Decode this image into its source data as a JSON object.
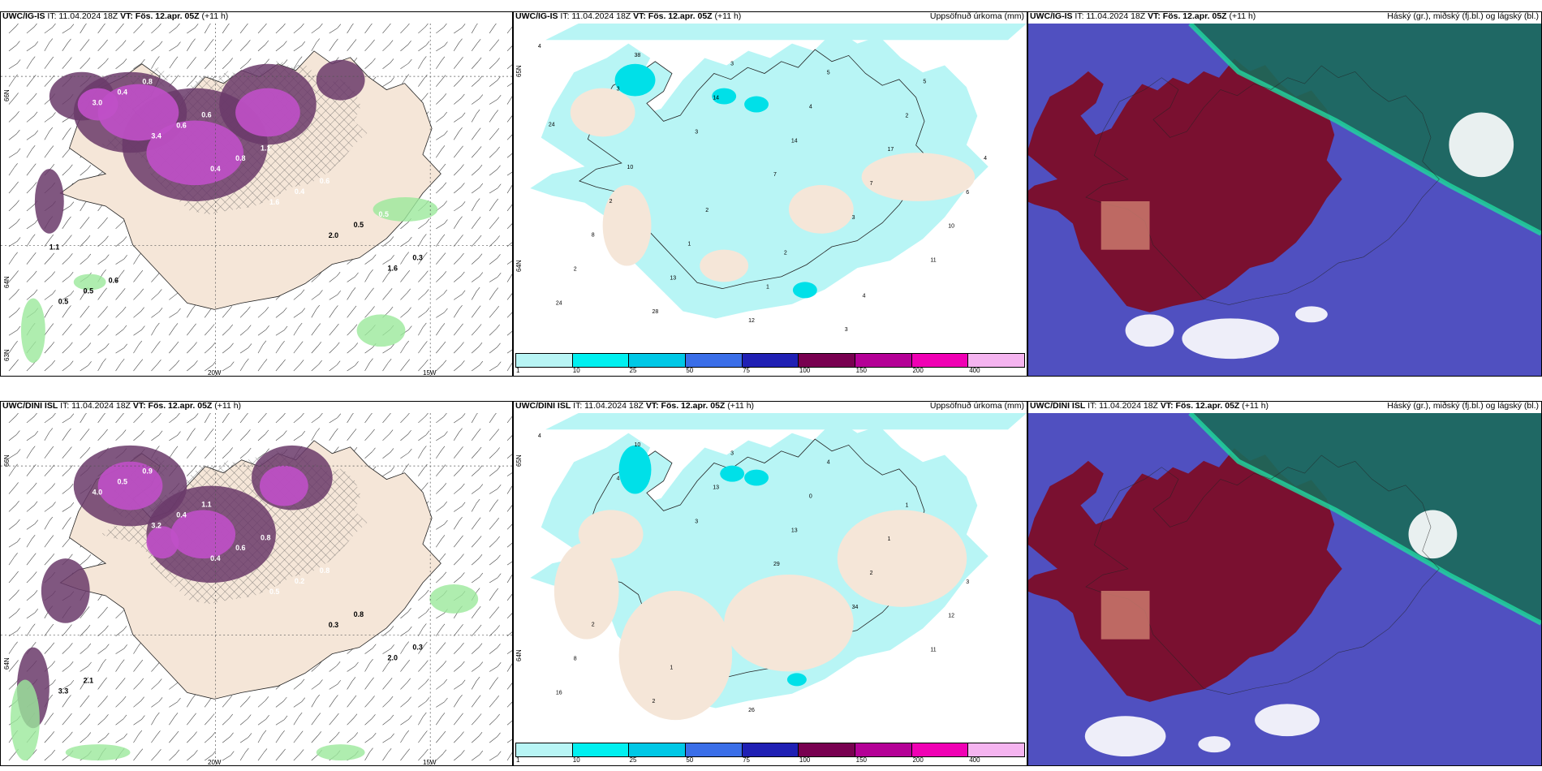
{
  "panels": {
    "p1": {
      "model": "UWC/IG-IS",
      "it": "IT: 11.04.2024 18Z",
      "vt": "VT: Fös. 12.apr. 05Z",
      "lead": "(+11 h)",
      "right": ""
    },
    "p2": {
      "model": "UWC/IG-IS",
      "it": "IT: 11.04.2024 18Z",
      "vt": "VT: Fös. 12.apr. 05Z",
      "lead": "(+11 h)",
      "right": "Uppsöfnuð úrkoma (mm)"
    },
    "p3": {
      "model": "UWC/IG-IS",
      "it": "IT: 11.04.2024 18Z",
      "vt": "VT: Fös. 12.apr. 05Z",
      "lead": "(+11 h)",
      "right": "Háský (gr.), miðský (fj.bl.) og lágský (bl.)"
    },
    "p4": {
      "model": "UWC/DINI ISL",
      "it": "IT: 11.04.2024 18Z",
      "vt": "VT: Fös. 12.apr. 05Z",
      "lead": "(+11 h)",
      "right": ""
    },
    "p5": {
      "model": "UWC/DINI ISL",
      "it": "IT: 11.04.2024 18Z",
      "vt": "VT: Fös. 12.apr. 05Z",
      "lead": "(+11 h)",
      "right": "Uppsöfnuð úrkoma (mm)"
    },
    "p6": {
      "model": "UWC/DINI ISL",
      "it": "IT: 11.04.2024 18Z",
      "vt": "VT: Fös. 12.apr. 05Z",
      "lead": "(+11 h)",
      "right": "Háský (gr.), miðský (fj.bl.) og lágský (bl.)"
    }
  },
  "axes": {
    "lon_20": "20W",
    "lon_15": "15W",
    "lat_65": "65N",
    "lat_64": "64N",
    "lat_63": "63N",
    "lat_66": "66N"
  },
  "colorbar": {
    "ticks": [
      "1",
      "10",
      "25",
      "50",
      "75",
      "100",
      "150",
      "200",
      "400"
    ],
    "colors": [
      "#b8f5f5",
      "#00f0f0",
      "#00c8e6",
      "#3a6ee8",
      "#2020b4",
      "#780050",
      "#b40096",
      "#f000b4",
      "#f5b4f0"
    ]
  },
  "labels": {
    "p1": [
      "0.5",
      "3.0",
      "3.4",
      "0.4",
      "1.6",
      "2.0",
      "1.6",
      "0.5",
      "0.4",
      "0.6",
      "0.8",
      "0.4",
      "0.5",
      "0.3",
      "0.5",
      "0.8",
      "0.6",
      "1.1",
      "0.6",
      "0.5",
      "1.1",
      "0.6",
      "0.3"
    ],
    "p2": [
      "4",
      "3",
      "3",
      "7",
      "3",
      "11",
      "24",
      "38",
      "14",
      "14",
      "7",
      "10",
      "2",
      "28",
      "3",
      "4",
      "17",
      "6",
      "8",
      "13",
      "12",
      "5",
      "2",
      "4",
      "2",
      "1",
      "1",
      "3",
      "5",
      "24",
      "10",
      "2",
      "2",
      "4"
    ],
    "p4": [
      "0.4",
      "4.0",
      "3.2",
      "0.4",
      "0.5",
      "0.3",
      "2.0",
      "3.3",
      "0.5",
      "0.4",
      "0.6",
      "0.2",
      "0.8",
      "0.3",
      "2.1",
      "0.9",
      "1.1",
      "0.8",
      "0.8"
    ],
    "p5": [
      "4",
      "4",
      "3",
      "29",
      "34",
      "11",
      "16",
      "10",
      "13",
      "13",
      "2",
      "12",
      "8",
      "2",
      "3",
      "0",
      "1",
      "3",
      "2",
      "1",
      "26",
      "4",
      "1"
    ]
  },
  "colors": {
    "land": "#f5e6d8",
    "precip_light": "#b8f5f5",
    "precip_mid": "#00e0e8",
    "snow_purple": "#6a3a6a",
    "snow_magenta": "#c050c8",
    "rain_green": "#9be89b",
    "cloud_high": "#7a1030",
    "cloud_mid": "#5050c0",
    "cloud_low": "#1a6a5a"
  }
}
